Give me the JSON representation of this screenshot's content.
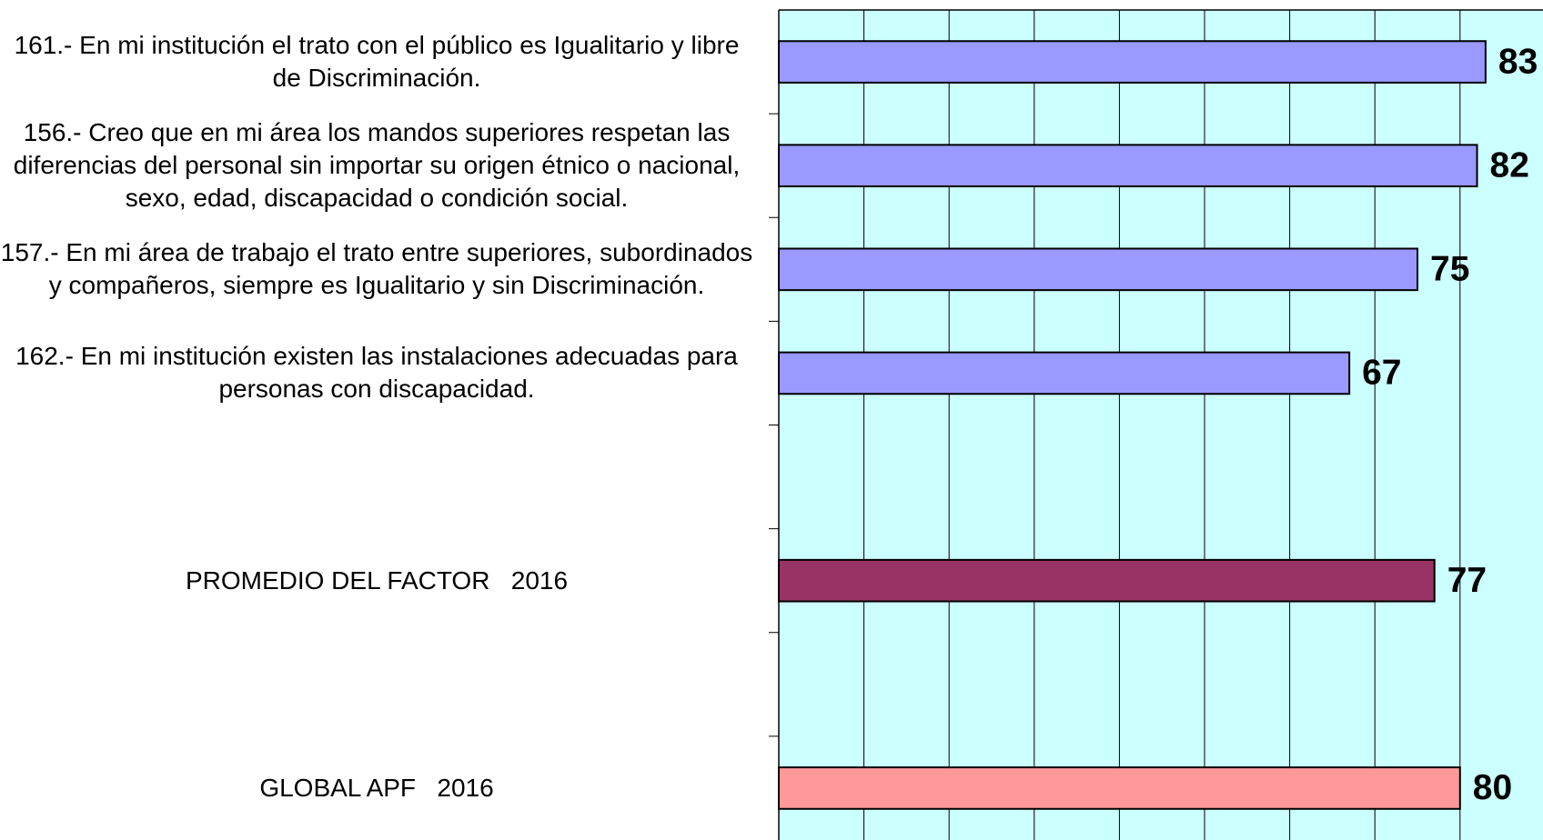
{
  "chart_data": {
    "type": "bar",
    "orientation": "horizontal",
    "categories": [
      "161.- En mi institución el trato con el público es Igualitario y libre de Discriminación.",
      "156.- Creo que en mi área los mandos superiores respetan las diferencias del personal sin importar su origen étnico o nacional, sexo, edad, discapacidad o condición social.",
      "157.- En mi área de trabajo el trato entre superiores, subordinados y compañeros, siempre es Igualitario y sin Discriminación.",
      "162.- En mi institución existen las instalaciones adecuadas para personas con discapacidad.",
      null,
      "PROMEDIO DEL FACTOR   2016",
      null,
      "GLOBAL APF   2016"
    ],
    "values": [
      83,
      82,
      75,
      67,
      null,
      77,
      null,
      80
    ],
    "colors": [
      "#9999ff",
      "#9999ff",
      "#9999ff",
      "#9999ff",
      null,
      "#993366",
      null,
      "#ff9999"
    ],
    "xlim": [
      0,
      100
    ],
    "xticks": [
      0,
      10,
      20,
      30,
      40,
      50,
      60,
      70,
      80,
      90,
      100
    ],
    "grid": true,
    "background": "#ccffff"
  }
}
